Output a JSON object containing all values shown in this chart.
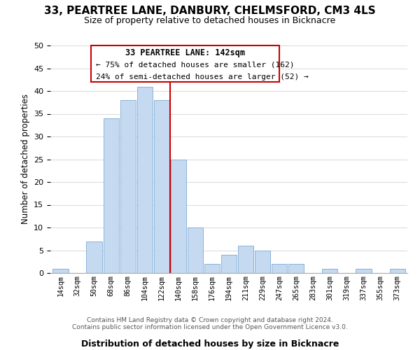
{
  "title": "33, PEARTREE LANE, DANBURY, CHELMSFORD, CM3 4LS",
  "subtitle": "Size of property relative to detached houses in Bicknacre",
  "xlabel": "Distribution of detached houses by size in Bicknacre",
  "ylabel": "Number of detached properties",
  "bar_labels": [
    "14sqm",
    "32sqm",
    "50sqm",
    "68sqm",
    "86sqm",
    "104sqm",
    "122sqm",
    "140sqm",
    "158sqm",
    "176sqm",
    "194sqm",
    "211sqm",
    "229sqm",
    "247sqm",
    "265sqm",
    "283sqm",
    "301sqm",
    "319sqm",
    "337sqm",
    "355sqm",
    "373sqm"
  ],
  "bar_values": [
    1,
    0,
    7,
    34,
    38,
    41,
    38,
    25,
    10,
    2,
    4,
    6,
    5,
    2,
    2,
    0,
    1,
    0,
    1,
    0,
    1
  ],
  "bar_color": "#c5d9f1",
  "bar_edge_color": "#8ab4d9",
  "marker_line_index": 7,
  "marker_color": "#cc0000",
  "ylim": [
    0,
    50
  ],
  "yticks": [
    0,
    5,
    10,
    15,
    20,
    25,
    30,
    35,
    40,
    45,
    50
  ],
  "annotation_title": "33 PEARTREE LANE: 142sqm",
  "annotation_line1": "← 75% of detached houses are smaller (162)",
  "annotation_line2": "24% of semi-detached houses are larger (52) →",
  "footer1": "Contains HM Land Registry data © Crown copyright and database right 2024.",
  "footer2": "Contains public sector information licensed under the Open Government Licence v3.0.",
  "bg_color": "#ffffff",
  "grid_color": "#dddddd"
}
